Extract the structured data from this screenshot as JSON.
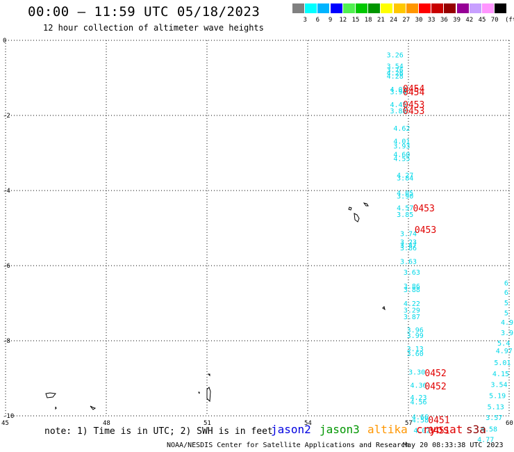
{
  "title": "00:00 – 11:59 UTC 05/18/2023",
  "subtitle": "12 hour collection of altimeter wave heights",
  "scale": {
    "colors": [
      "#808080",
      "#00ffff",
      "#00b4ff",
      "#0000ff",
      "#50f050",
      "#00c800",
      "#009600",
      "#ffff00",
      "#ffc800",
      "#ff9600",
      "#ff0000",
      "#c80000",
      "#960000",
      "#960096",
      "#c8a0ff",
      "#ff96ff",
      "#000000"
    ],
    "labels": [
      "3",
      "6",
      "9",
      "12",
      "15",
      "18",
      "21",
      "24",
      "27",
      "30",
      "33",
      "36",
      "39",
      "42",
      "45",
      "70"
    ],
    "unit": "(ft)"
  },
  "axes": {
    "x_ticks": [
      "45",
      "48",
      "51",
      "54",
      "57",
      "60"
    ],
    "y_ticks": [
      "0",
      "-2",
      "-4",
      "-6",
      "-8",
      "-10"
    ]
  },
  "observations": [
    {
      "lon": 56.6,
      "lat": -0.38,
      "v": "3.26"
    },
    {
      "lon": 56.6,
      "lat": -0.68,
      "v": "3.54"
    },
    {
      "lon": 56.6,
      "lat": -0.78,
      "v": "3.76"
    },
    {
      "lon": 56.6,
      "lat": -0.86,
      "v": "4.26"
    },
    {
      "lon": 56.6,
      "lat": -0.94,
      "v": "4.28"
    },
    {
      "lon": 56.7,
      "lat": -1.3,
      "v": "4.03"
    },
    {
      "lon": 56.7,
      "lat": -1.36,
      "v": "3.94"
    },
    {
      "lon": 56.7,
      "lat": -1.7,
      "v": "4.45"
    },
    {
      "lon": 56.7,
      "lat": -1.87,
      "v": "3.88"
    },
    {
      "lon": 56.8,
      "lat": -2.33,
      "v": "4.62"
    },
    {
      "lon": 56.8,
      "lat": -2.68,
      "v": "4.01"
    },
    {
      "lon": 56.8,
      "lat": -2.81,
      "v": "3.93"
    },
    {
      "lon": 56.8,
      "lat": -3.03,
      "v": "4.60"
    },
    {
      "lon": 56.8,
      "lat": -3.14,
      "v": "4.55"
    },
    {
      "lon": 56.9,
      "lat": -3.58,
      "v": "4.27"
    },
    {
      "lon": 56.9,
      "lat": -3.66,
      "v": "3.84"
    },
    {
      "lon": 56.9,
      "lat": -4.06,
      "v": "4.05"
    },
    {
      "lon": 56.9,
      "lat": -4.14,
      "v": "3.90"
    },
    {
      "lon": 56.9,
      "lat": -4.45,
      "v": "4.57"
    },
    {
      "lon": 56.9,
      "lat": -4.63,
      "v": "3.85"
    },
    {
      "lon": 57.0,
      "lat": -5.14,
      "v": "3.74"
    },
    {
      "lon": 57.0,
      "lat": -5.36,
      "v": "3.23"
    },
    {
      "lon": 57.0,
      "lat": -5.44,
      "v": "3.47"
    },
    {
      "lon": 57.0,
      "lat": -5.52,
      "v": "3.86"
    },
    {
      "lon": 57.0,
      "lat": -5.88,
      "v": "3.63"
    },
    {
      "lon": 57.1,
      "lat": -6.17,
      "v": "3.63"
    },
    {
      "lon": 57.1,
      "lat": -6.54,
      "v": "3.86"
    },
    {
      "lon": 57.1,
      "lat": -6.63,
      "v": "3.88"
    },
    {
      "lon": 57.1,
      "lat": -7.0,
      "v": "4.22"
    },
    {
      "lon": 57.1,
      "lat": -7.18,
      "v": "3.29"
    },
    {
      "lon": 57.1,
      "lat": -7.35,
      "v": "3.87"
    },
    {
      "lon": 57.2,
      "lat": -7.7,
      "v": "3.96"
    },
    {
      "lon": 57.2,
      "lat": -7.85,
      "v": "3.99"
    },
    {
      "lon": 57.2,
      "lat": -8.2,
      "v": "3.13"
    },
    {
      "lon": 57.2,
      "lat": -8.33,
      "v": "3.60"
    },
    {
      "lon": 57.25,
      "lat": -8.82,
      "v": "3.30"
    },
    {
      "lon": 57.3,
      "lat": -9.18,
      "v": "4.36"
    },
    {
      "lon": 57.3,
      "lat": -9.5,
      "v": "4.23"
    },
    {
      "lon": 57.3,
      "lat": -9.62,
      "v": "4.56"
    },
    {
      "lon": 57.35,
      "lat": -10.02,
      "v": "4.66"
    },
    {
      "lon": 57.35,
      "lat": -10.1,
      "v": "4.58"
    },
    {
      "lon": 57.4,
      "lat": -10.38,
      "v": "4.02"
    },
    {
      "lon": 60.1,
      "lat": -6.45,
      "v": "6"
    },
    {
      "lon": 60.1,
      "lat": -6.7,
      "v": "6"
    },
    {
      "lon": 60.1,
      "lat": -6.98,
      "v": "5"
    },
    {
      "lon": 60.1,
      "lat": -7.25,
      "v": "5"
    },
    {
      "lon": 60.0,
      "lat": -7.5,
      "v": "4.9"
    },
    {
      "lon": 60.0,
      "lat": -7.78,
      "v": "3.9"
    },
    {
      "lon": 59.9,
      "lat": -8.06,
      "v": "5.4"
    },
    {
      "lon": 59.85,
      "lat": -8.26,
      "v": "4.97"
    },
    {
      "lon": 59.8,
      "lat": -8.57,
      "v": "5.01"
    },
    {
      "lon": 59.75,
      "lat": -8.87,
      "v": "4.15"
    },
    {
      "lon": 59.7,
      "lat": -9.16,
      "v": "3.54"
    },
    {
      "lon": 59.65,
      "lat": -9.45,
      "v": "5.19"
    },
    {
      "lon": 59.6,
      "lat": -9.75,
      "v": "5.13"
    },
    {
      "lon": 59.55,
      "lat": -10.04,
      "v": "3.57"
    },
    {
      "lon": 59.4,
      "lat": -10.34,
      "v": "4.58"
    },
    {
      "lon": 59.3,
      "lat": -10.62,
      "v": "4.77"
    }
  ],
  "passes": [
    {
      "lon": 57.0,
      "lat": -1.28,
      "t": "0454"
    },
    {
      "lon": 57.0,
      "lat": -1.37,
      "t": "0454"
    },
    {
      "lon": 57.0,
      "lat": -1.7,
      "t": "0453"
    },
    {
      "lon": 57.0,
      "lat": -1.87,
      "t": "0453"
    },
    {
      "lon": 57.3,
      "lat": -4.46,
      "t": "0453"
    },
    {
      "lon": 57.35,
      "lat": -5.04,
      "t": "0453"
    },
    {
      "lon": 57.65,
      "lat": -8.85,
      "t": "0452"
    },
    {
      "lon": 57.65,
      "lat": -9.2,
      "t": "0452"
    },
    {
      "lon": 57.75,
      "lat": -10.1,
      "t": "0451"
    },
    {
      "lon": 57.75,
      "lat": -10.38,
      "t": "0451"
    }
  ],
  "missions": [
    {
      "name": "jason2",
      "color": "#0000e0"
    },
    {
      "name": "jason3",
      "color": "#009600"
    },
    {
      "name": "altika",
      "color": "#ff9600"
    },
    {
      "name": "cryosat",
      "color": "#e00000"
    },
    {
      "name": "s3a",
      "color": "#900000"
    }
  ],
  "note": "note: 1) Time is in UTC; 2) SWH is in feet",
  "credit": "NOAA/NESDIS Center for Satellite Applications and Research",
  "timestamp": "May 20 08:33:38 UTC 2023"
}
